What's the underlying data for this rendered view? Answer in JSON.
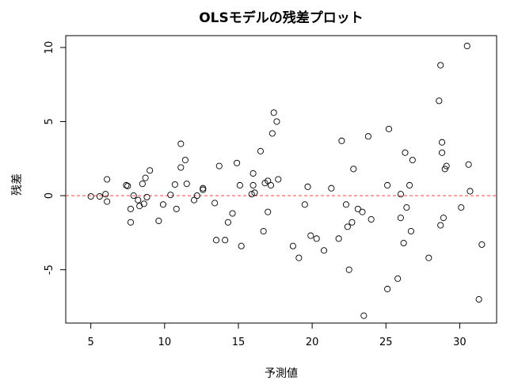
{
  "chart_data": {
    "type": "scatter",
    "title": "OLSモデルの残差プロット",
    "xlabel": "予測値",
    "ylabel": "残差",
    "xlim": [
      3.3,
      32.5
    ],
    "ylim": [
      -8.6,
      10.8
    ],
    "xticks": [
      5,
      10,
      15,
      20,
      25,
      30
    ],
    "yticks": [
      -5,
      0,
      5,
      10
    ],
    "reference_line": {
      "y": 0,
      "color": "#ff4040",
      "style": "dashed"
    },
    "grid": false,
    "series": [
      {
        "points": [
          [
            5.0,
            -0.05
          ],
          [
            5.6,
            -0.05
          ],
          [
            6.0,
            0.1
          ],
          [
            6.1,
            1.1
          ],
          [
            6.1,
            -0.4
          ],
          [
            7.4,
            0.7
          ],
          [
            7.5,
            0.65
          ],
          [
            7.7,
            -0.9
          ],
          [
            7.7,
            -1.8
          ],
          [
            7.9,
            0.0
          ],
          [
            8.2,
            -0.3
          ],
          [
            8.3,
            -0.7
          ],
          [
            8.5,
            0.8
          ],
          [
            8.6,
            -0.55
          ],
          [
            8.7,
            1.2
          ],
          [
            8.8,
            -0.1
          ],
          [
            9.0,
            1.7
          ],
          [
            9.6,
            -1.7
          ],
          [
            9.9,
            -0.6
          ],
          [
            10.4,
            0.05
          ],
          [
            10.7,
            0.75
          ],
          [
            10.8,
            -0.9
          ],
          [
            11.1,
            1.9
          ],
          [
            11.1,
            3.5
          ],
          [
            11.4,
            2.4
          ],
          [
            11.5,
            0.8
          ],
          [
            12.0,
            -0.3
          ],
          [
            12.2,
            0.0
          ],
          [
            12.6,
            0.5
          ],
          [
            12.6,
            0.4
          ],
          [
            13.4,
            -0.5
          ],
          [
            13.5,
            -3.0
          ],
          [
            13.7,
            2.0
          ],
          [
            14.1,
            -3.0
          ],
          [
            14.3,
            -1.8
          ],
          [
            14.6,
            -1.2
          ],
          [
            14.9,
            2.2
          ],
          [
            15.1,
            0.7
          ],
          [
            15.2,
            -3.4
          ],
          [
            15.9,
            0.1
          ],
          [
            16.0,
            1.5
          ],
          [
            16.0,
            0.7
          ],
          [
            16.1,
            0.2
          ],
          [
            16.5,
            3.0
          ],
          [
            16.7,
            -2.4
          ],
          [
            16.8,
            0.85
          ],
          [
            17.0,
            1.0
          ],
          [
            17.0,
            -1.1
          ],
          [
            17.2,
            0.7
          ],
          [
            17.3,
            4.2
          ],
          [
            17.4,
            5.6
          ],
          [
            17.6,
            5.0
          ],
          [
            17.7,
            1.1
          ],
          [
            18.7,
            -3.4
          ],
          [
            19.1,
            -4.2
          ],
          [
            19.5,
            -0.6
          ],
          [
            19.7,
            0.6
          ],
          [
            19.9,
            -2.7
          ],
          [
            20.3,
            -2.9
          ],
          [
            20.8,
            -3.7
          ],
          [
            21.3,
            0.5
          ],
          [
            21.8,
            -2.9
          ],
          [
            22.0,
            3.7
          ],
          [
            22.3,
            -0.6
          ],
          [
            22.4,
            -2.1
          ],
          [
            22.5,
            -5.0
          ],
          [
            22.7,
            -1.8
          ],
          [
            22.8,
            1.8
          ],
          [
            23.1,
            -0.9
          ],
          [
            23.4,
            -1.1
          ],
          [
            23.5,
            -8.1
          ],
          [
            23.8,
            4.0
          ],
          [
            24.0,
            -1.6
          ],
          [
            25.1,
            -6.3
          ],
          [
            25.1,
            0.7
          ],
          [
            25.2,
            4.5
          ],
          [
            25.8,
            -5.6
          ],
          [
            26.0,
            0.1
          ],
          [
            26.0,
            -1.5
          ],
          [
            26.2,
            -3.2
          ],
          [
            26.3,
            2.9
          ],
          [
            26.4,
            -0.8
          ],
          [
            26.6,
            0.7
          ],
          [
            26.7,
            -2.4
          ],
          [
            26.8,
            2.4
          ],
          [
            27.9,
            -4.2
          ],
          [
            28.6,
            6.4
          ],
          [
            28.7,
            8.8
          ],
          [
            28.7,
            -2.0
          ],
          [
            28.8,
            2.9
          ],
          [
            28.8,
            3.6
          ],
          [
            28.9,
            -1.5
          ],
          [
            29.0,
            1.8
          ],
          [
            29.1,
            2.0
          ],
          [
            30.1,
            -0.8
          ],
          [
            30.5,
            10.1
          ],
          [
            30.6,
            2.1
          ],
          [
            30.7,
            0.3
          ],
          [
            31.3,
            -7.0
          ],
          [
            31.5,
            -3.3
          ]
        ]
      }
    ]
  }
}
